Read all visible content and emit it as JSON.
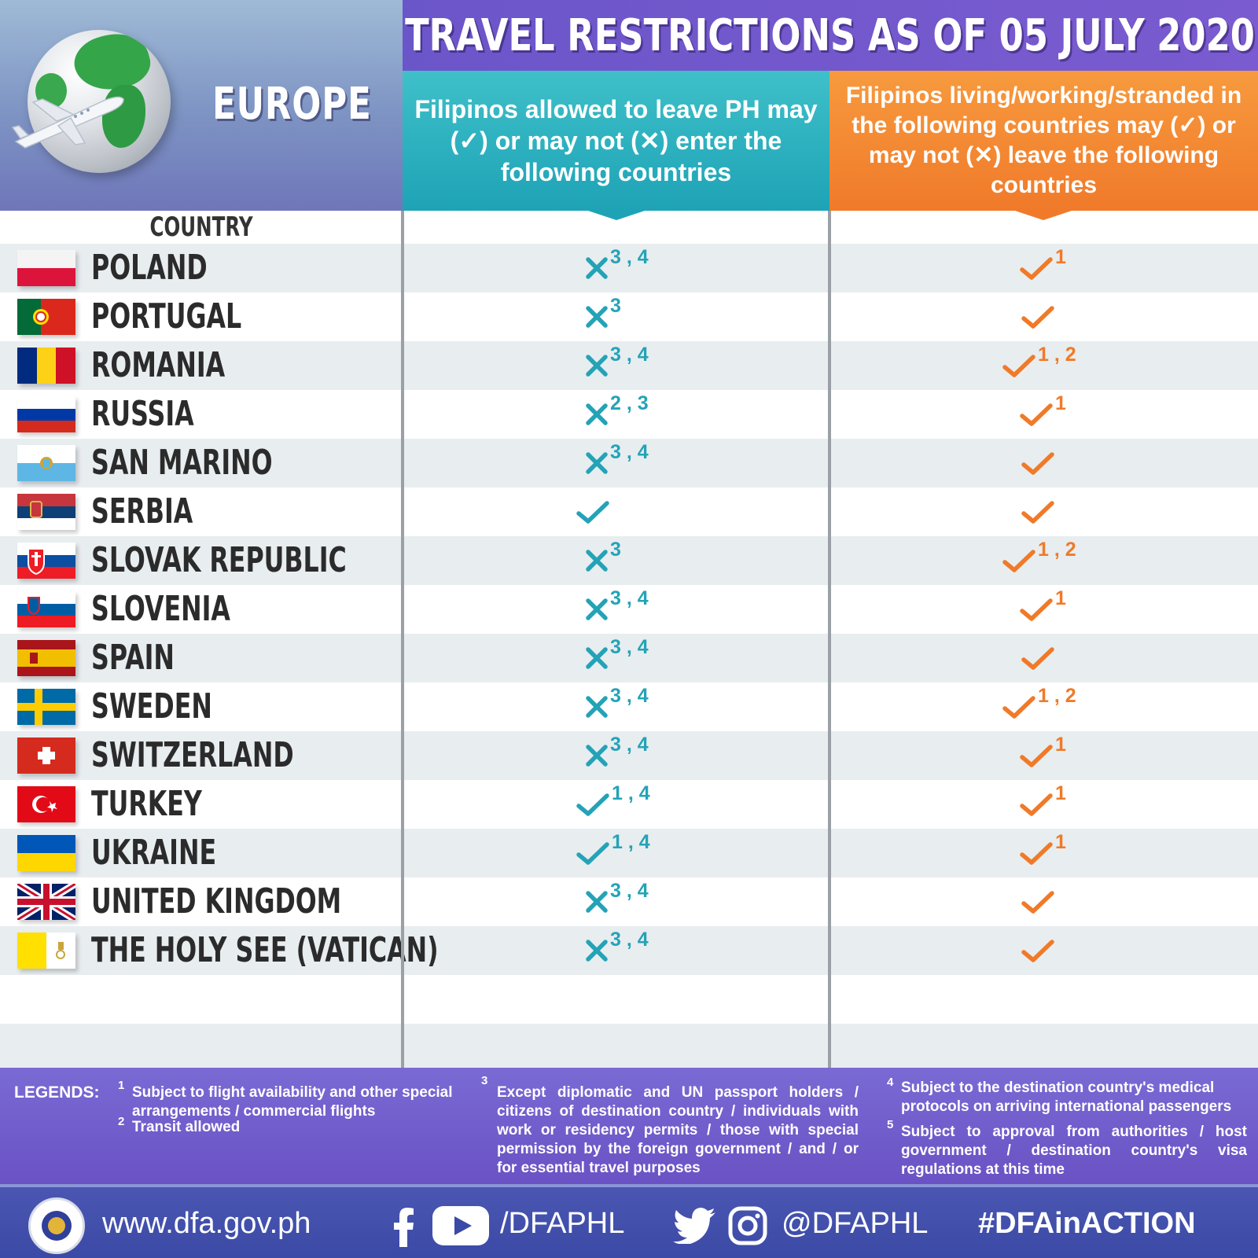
{
  "header": {
    "region": "EUROPE",
    "title": "TRAVEL RESTRICTIONS AS OF 05 JULY 2020",
    "col_enter": "Filipinos allowed to leave PH may (✓) or may not (✕) enter the following countries",
    "col_leave": "Filipinos living/working/stranded in the following countries may (✓) or may not (✕) leave the following countries"
  },
  "table": {
    "country_header": "COUNTRY",
    "rows": [
      {
        "country": "POLAND",
        "flag": "poland-flag",
        "enter": "x",
        "enter_notes": "3 , 4",
        "leave": "check",
        "leave_notes": "1"
      },
      {
        "country": "PORTUGAL",
        "flag": "portugal-flag",
        "enter": "x",
        "enter_notes": "3",
        "leave": "check",
        "leave_notes": ""
      },
      {
        "country": "ROMANIA",
        "flag": "romania-flag",
        "enter": "x",
        "enter_notes": "3 , 4",
        "leave": "check",
        "leave_notes": "1 , 2"
      },
      {
        "country": "RUSSIA",
        "flag": "russia-flag",
        "enter": "x",
        "enter_notes": "2 , 3",
        "leave": "check",
        "leave_notes": "1"
      },
      {
        "country": "SAN MARINO",
        "flag": "san-marino-flag",
        "enter": "x",
        "enter_notes": "3 , 4",
        "leave": "check",
        "leave_notes": ""
      },
      {
        "country": "SERBIA",
        "flag": "serbia-flag",
        "enter": "check",
        "enter_notes": "",
        "leave": "check",
        "leave_notes": ""
      },
      {
        "country": "SLOVAK REPUBLIC",
        "flag": "slovakia-flag",
        "enter": "x",
        "enter_notes": "3",
        "leave": "check",
        "leave_notes": "1 , 2"
      },
      {
        "country": "SLOVENIA",
        "flag": "slovenia-flag",
        "enter": "x",
        "enter_notes": "3 , 4",
        "leave": "check",
        "leave_notes": "1"
      },
      {
        "country": "SPAIN",
        "flag": "spain-flag",
        "enter": "x",
        "enter_notes": "3 , 4",
        "leave": "check",
        "leave_notes": ""
      },
      {
        "country": "SWEDEN",
        "flag": "sweden-flag",
        "enter": "x",
        "enter_notes": "3 , 4",
        "leave": "check",
        "leave_notes": "1 , 2"
      },
      {
        "country": "SWITZERLAND",
        "flag": "switzerland-flag",
        "enter": "x",
        "enter_notes": "3 , 4",
        "leave": "check",
        "leave_notes": "1"
      },
      {
        "country": "TURKEY",
        "flag": "turkey-flag",
        "enter": "check",
        "enter_notes": "1 , 4",
        "leave": "check",
        "leave_notes": "1"
      },
      {
        "country": "UKRAINE",
        "flag": "ukraine-flag",
        "enter": "check",
        "enter_notes": "1 , 4",
        "leave": "check",
        "leave_notes": "1"
      },
      {
        "country": "UNITED KINGDOM",
        "flag": "uk-flag",
        "enter": "x",
        "enter_notes": "3 , 4",
        "leave": "check",
        "leave_notes": ""
      },
      {
        "country": "THE HOLY SEE (VATICAN)",
        "flag": "vatican-flag",
        "enter": "x",
        "enter_notes": "3 , 4",
        "leave": "check",
        "leave_notes": ""
      }
    ]
  },
  "legend": {
    "title": "LEGENDS:",
    "notes": [
      {
        "num": "1",
        "text": "Subject to flight availability and other special arrangements / commercial flights"
      },
      {
        "num": "2",
        "text": "Transit allowed"
      },
      {
        "num": "3",
        "text": "Except diplomatic and UN passport holders / citizens of destination country / individuals with work or residency permits / those with special permission by the foreign government / and / or for essential travel purposes"
      },
      {
        "num": "4",
        "text": "Subject to the destination country's medical protocols on arriving international passengers"
      },
      {
        "num": "5",
        "text": "Subject to approval from authorities / host government / destination country's visa regulations at this time"
      }
    ]
  },
  "footer": {
    "website": "www.dfa.gov.ph",
    "handle_fb_yt": "/DFAPHL",
    "handle_tw_ig": "@DFAPHL",
    "hashtag": "#DFAinACTION"
  },
  "colors": {
    "teal": "#24a3b7",
    "orange": "#f07a28",
    "purple": "#6b56c9",
    "footer_blue": "#3b4aa6"
  }
}
